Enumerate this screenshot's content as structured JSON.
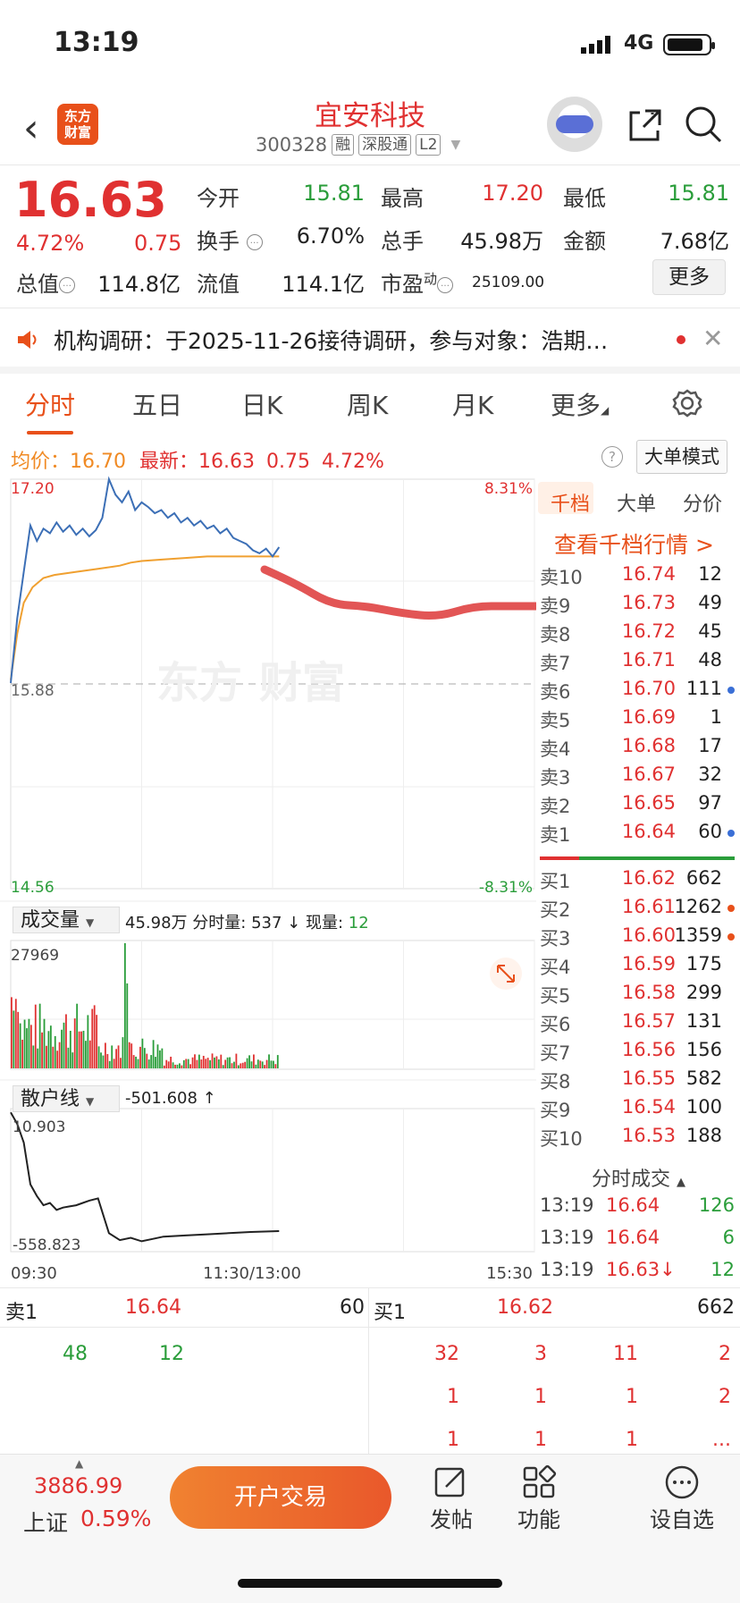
{
  "status_bar": {
    "time": "13:19",
    "network": "4G"
  },
  "header": {
    "logo_line1": "东方",
    "logo_line2": "财富",
    "stock_name": "宜安科技",
    "stock_code": "300328",
    "tags": [
      "融",
      "深股通",
      "L2"
    ]
  },
  "quote": {
    "price": "16.63",
    "pct": "4.72%",
    "change": "0.75",
    "fields": {
      "open_label": "今开",
      "open": "15.81",
      "high_label": "最高",
      "high": "17.20",
      "low_label": "最低",
      "low": "15.81",
      "turnover_label": "换手",
      "turnover": "6.70%",
      "volume_label": "总手",
      "volume": "45.98万",
      "amount_label": "金额",
      "amount": "7.68亿",
      "mktcap_label": "总值",
      "mktcap": "114.8亿",
      "float_label": "流值",
      "float": "114.1亿",
      "pe_label": "市盈",
      "pe_sup": "动",
      "pe": "25109.00"
    },
    "more_label": "更多"
  },
  "announcement": {
    "text": "机构调研：于2025-11-26接待调研，参与对象：浩期…"
  },
  "tabs": [
    "分时",
    "五日",
    "日K",
    "周K",
    "月K",
    "更多"
  ],
  "avg_row": {
    "avg_label": "均价：",
    "avg": "16.70",
    "latest_label": "最新：",
    "latest": "16.63",
    "chg": "0.75",
    "pct": "4.72%"
  },
  "big_order_button": "大单模式",
  "chart_data": [
    {
      "type": "line",
      "title": "",
      "y_labels": {
        "top": "17.20",
        "mid": "15.88",
        "bottom": "14.56",
        "top_pct": "8.31%",
        "bottom_pct": "-8.31%"
      },
      "ylim": [
        14.56,
        17.2
      ],
      "x_labels": [
        "09:30",
        "11:30/13:00",
        "15:30"
      ],
      "series": [
        {
          "name": "price",
          "color": "#3c6fb6",
          "x": [
            0,
            3,
            6,
            9,
            12,
            15,
            18,
            21,
            24,
            27,
            30,
            33,
            36,
            39,
            42,
            45,
            48,
            51,
            54,
            57,
            60,
            63,
            66,
            69,
            72,
            75,
            78,
            81,
            84,
            87,
            90,
            93,
            96,
            99,
            102,
            105,
            108,
            111,
            114,
            117,
            120,
            123
          ],
          "values": [
            15.88,
            16.3,
            16.6,
            16.9,
            16.8,
            16.88,
            16.85,
            16.92,
            16.86,
            16.9,
            16.84,
            16.88,
            16.83,
            16.87,
            16.95,
            17.2,
            17.1,
            17.05,
            17.12,
            17.0,
            17.05,
            17.02,
            16.98,
            17.0,
            16.95,
            16.98,
            16.92,
            16.95,
            16.9,
            16.93,
            16.88,
            16.9,
            16.85,
            16.88,
            16.82,
            16.8,
            16.78,
            16.74,
            16.72,
            16.75,
            16.7,
            16.76
          ]
        },
        {
          "name": "avg",
          "color": "#f0a030",
          "x": [
            0,
            3,
            6,
            10,
            15,
            20,
            30,
            40,
            50,
            55,
            60,
            70,
            80,
            90,
            100,
            110,
            123
          ],
          "values": [
            15.9,
            16.2,
            16.4,
            16.5,
            16.56,
            16.58,
            16.6,
            16.62,
            16.64,
            16.66,
            16.67,
            16.68,
            16.69,
            16.7,
            16.7,
            16.7,
            16.7
          ]
        }
      ]
    },
    {
      "type": "bar",
      "title": "成交量",
      "y_labels": {
        "top": "27969"
      },
      "total": "45.98万",
      "minute_label": "分时量:",
      "minute": "537",
      "current_label": "现量:",
      "current": "12"
    },
    {
      "type": "line",
      "title": "散户线",
      "value_text": "-501.608",
      "y_labels": {
        "top": "10.903",
        "bottom": "-558.823"
      },
      "series": [
        {
          "name": "散户线",
          "color": "#222",
          "x": [
            0,
            3,
            6,
            9,
            12,
            15,
            18,
            21,
            24,
            27,
            30,
            33,
            36,
            40,
            45,
            50,
            55,
            60,
            65,
            70,
            80,
            90,
            100,
            110,
            123
          ],
          "values": [
            10,
            -40,
            -120,
            -300,
            -350,
            -390,
            -380,
            -410,
            -400,
            -395,
            -390,
            -380,
            -370,
            -360,
            -510,
            -540,
            -530,
            -545,
            -535,
            -525,
            -520,
            -515,
            -510,
            -505,
            -501
          ]
        }
      ]
    }
  ],
  "order_book": {
    "tabs": [
      "千档",
      "大单",
      "分价"
    ],
    "link": "查看千档行情 >",
    "asks": [
      {
        "label": "卖10",
        "price": "16.74",
        "vol": "12"
      },
      {
        "label": "卖9",
        "price": "16.73",
        "vol": "49"
      },
      {
        "label": "卖8",
        "price": "16.72",
        "vol": "45"
      },
      {
        "label": "卖7",
        "price": "16.71",
        "vol": "48"
      },
      {
        "label": "卖6",
        "price": "16.70",
        "vol": "111"
      },
      {
        "label": "卖5",
        "price": "16.69",
        "vol": "1"
      },
      {
        "label": "卖4",
        "price": "16.68",
        "vol": "17"
      },
      {
        "label": "卖3",
        "price": "16.67",
        "vol": "32"
      },
      {
        "label": "卖2",
        "price": "16.65",
        "vol": "97"
      },
      {
        "label": "卖1",
        "price": "16.64",
        "vol": "60"
      }
    ],
    "bids": [
      {
        "label": "买1",
        "price": "16.62",
        "vol": "662"
      },
      {
        "label": "买2",
        "price": "16.61",
        "vol": "1262"
      },
      {
        "label": "买3",
        "price": "16.60",
        "vol": "1359"
      },
      {
        "label": "买4",
        "price": "16.59",
        "vol": "175"
      },
      {
        "label": "买5",
        "price": "16.58",
        "vol": "299"
      },
      {
        "label": "买6",
        "price": "16.57",
        "vol": "131"
      },
      {
        "label": "买7",
        "price": "16.56",
        "vol": "156"
      },
      {
        "label": "买8",
        "price": "16.55",
        "vol": "582"
      },
      {
        "label": "买9",
        "price": "16.54",
        "vol": "100"
      },
      {
        "label": "买10",
        "price": "16.53",
        "vol": "188"
      }
    ],
    "minute_trades_title": "分时成交",
    "minute_trades": [
      {
        "time": "13:19",
        "price": "16.64",
        "vol": "126"
      },
      {
        "time": "13:19",
        "price": "16.64",
        "vol": "6"
      },
      {
        "time": "13:19",
        "price": "16.63↓",
        "vol": "12"
      }
    ]
  },
  "level1": {
    "ask_label": "卖1",
    "ask_price": "16.64",
    "ask_vol": "60",
    "bid_label": "买1",
    "bid_price": "16.62",
    "bid_vol": "662",
    "ask_queue": [
      "48",
      "12"
    ],
    "bid_queue_rows": [
      [
        "32",
        "3",
        "11",
        "2"
      ],
      [
        "1",
        "1",
        "1",
        "2"
      ],
      [
        "1",
        "1",
        "1",
        "..."
      ]
    ]
  },
  "bottom_bar": {
    "index_value": "3886.99",
    "index_name": "上证",
    "index_pct": "0.59%",
    "open_trade": "开户交易",
    "post": "发帖",
    "functions": "功能",
    "watchlist": "设自选"
  },
  "colors": {
    "up": "#e03131",
    "down": "#2a9d3a",
    "accent": "#e8501a",
    "price_line": "#3c6fb6",
    "avg_line": "#f0a030"
  }
}
